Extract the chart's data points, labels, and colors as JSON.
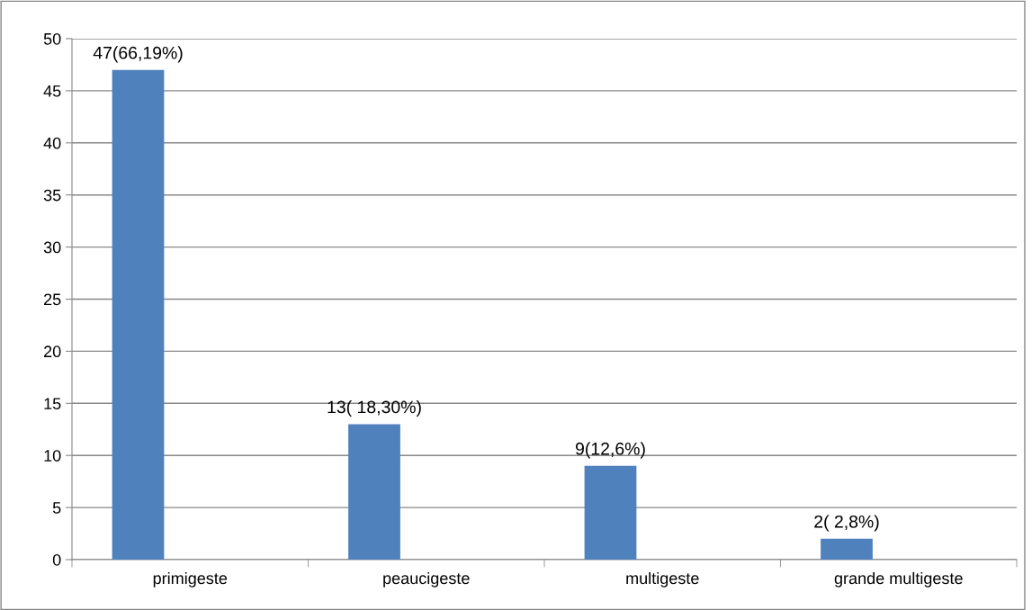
{
  "chart_data": {
    "type": "bar",
    "categories": [
      "primigeste",
      "peaucigeste",
      "multigeste",
      "grande multigeste"
    ],
    "values": [
      47,
      13,
      9,
      2
    ],
    "color": "#4f81bd",
    "value_labels": [
      "47(66,19%)",
      "13( 18,30%)",
      "9(12,6%)",
      "2( 2,8%)"
    ],
    "ylim": [
      0,
      50
    ],
    "yticks": [
      0,
      5,
      10,
      15,
      20,
      25,
      30,
      35,
      40,
      45,
      50
    ],
    "grid": "y"
  }
}
